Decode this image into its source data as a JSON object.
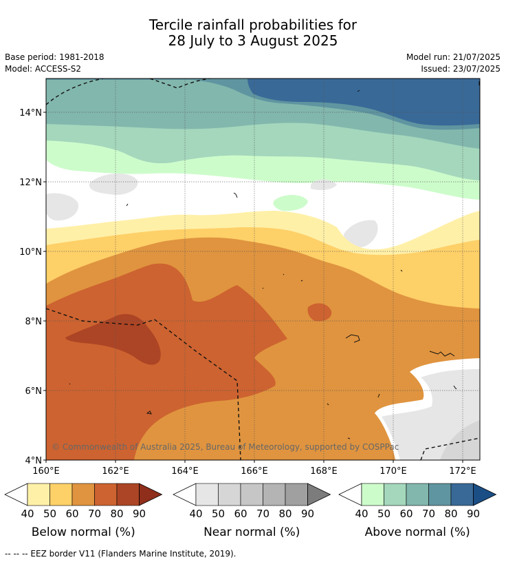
{
  "header": {
    "title_line1": "Tercile rainfall probabilities for",
    "title_line2": "28 July to 3 August 2025",
    "base_period": "Base period: 1981-2018",
    "model": "Model: ACCESS-S2",
    "model_run": "Model run: 21/07/2025",
    "issued": "Issued: 23/07/2025"
  },
  "map": {
    "lat_labels": [
      "4°N",
      "6°N",
      "8°N",
      "10°N",
      "12°N",
      "14°N"
    ],
    "lon_labels": [
      "160°E",
      "162°E",
      "164°E",
      "166°E",
      "168°E",
      "170°E",
      "172°E"
    ],
    "copyright": "© Commonwealth of Australia 2025, Bureau of Meteorology, supported by COSPPac"
  },
  "legends": [
    {
      "title": "Below normal (%)",
      "ticks": [
        "40",
        "50",
        "60",
        "70",
        "80",
        "90"
      ],
      "colors": [
        "#fff0a8",
        "#fed068",
        "#e0943f",
        "#cd6330",
        "#ac4525",
        "#8e2e1b"
      ]
    },
    {
      "title": "Near normal (%)",
      "ticks": [
        "40",
        "50",
        "60",
        "70",
        "80",
        "90"
      ],
      "colors": [
        "#e6e6e6",
        "#d6d6d6",
        "#c6c6c6",
        "#b4b4b4",
        "#a0a0a0",
        "#7c7c7c"
      ]
    },
    {
      "title": "Above normal (%)",
      "ticks": [
        "40",
        "50",
        "60",
        "70",
        "80",
        "90"
      ],
      "colors": [
        "#cdfccb",
        "#a4d7bc",
        "#82b7ad",
        "#5f95a0",
        "#396997",
        "#1a4e85"
      ]
    }
  ],
  "footer": {
    "eez_note": "--  --  -- EEZ border V11 (Flanders Marine Institute, 2019)."
  }
}
